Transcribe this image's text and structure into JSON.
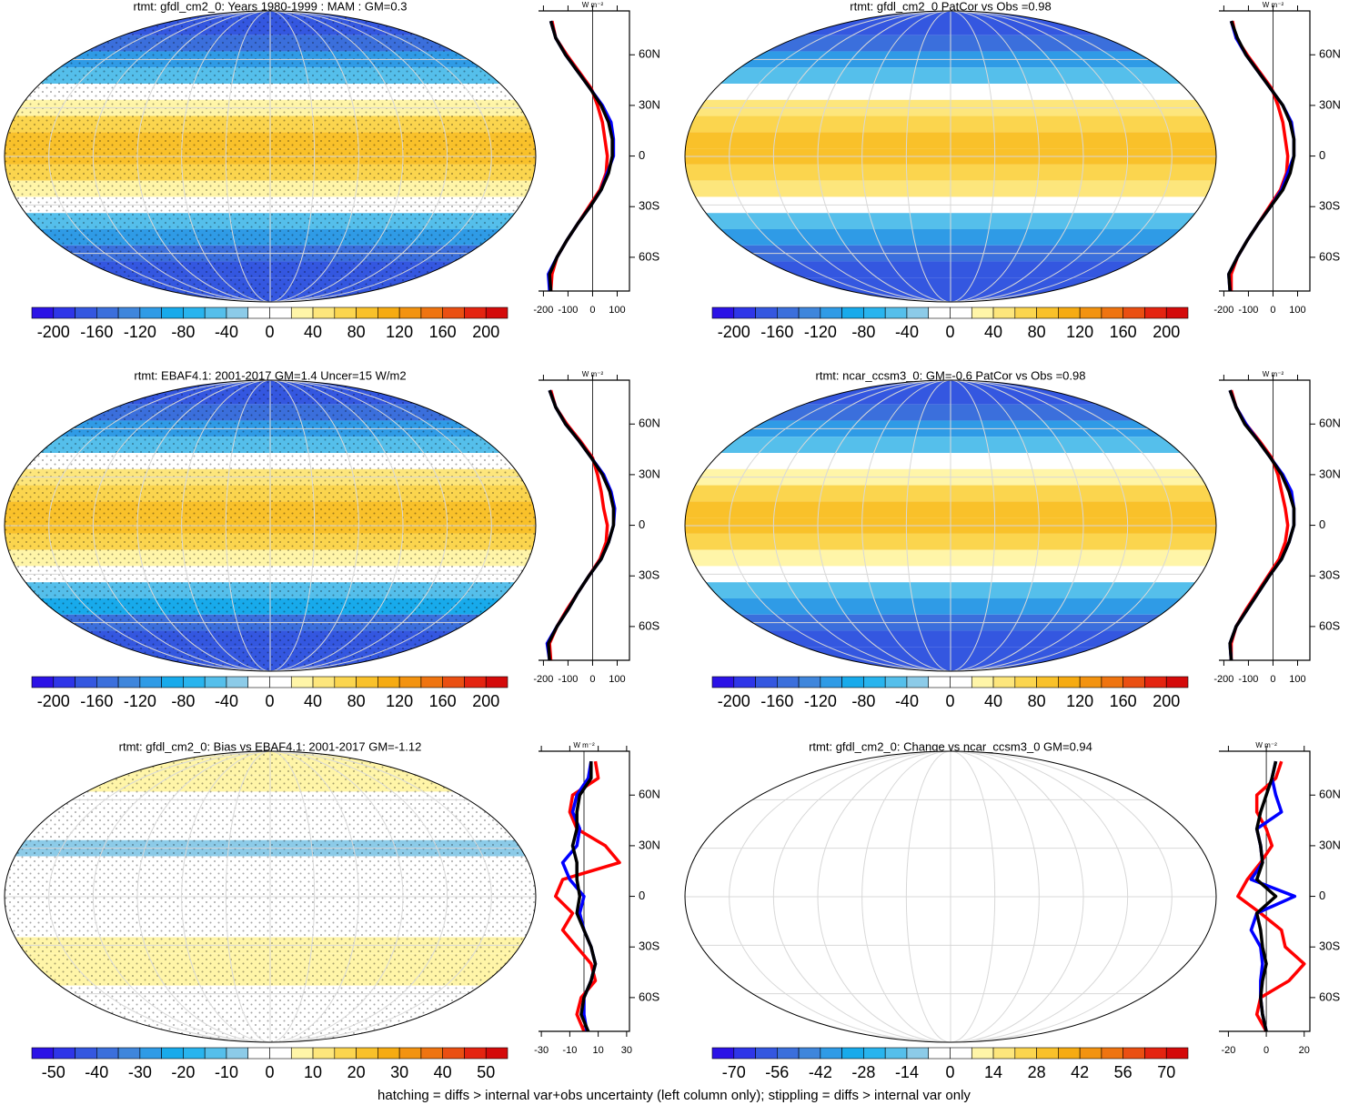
{
  "chart_data": [
    {
      "type": "map",
      "title": "rtmt: gfdl_cm2_0: Years 1980-1999 : MAM : GM=0.3",
      "cbar_ticks": [
        -200,
        -160,
        -120,
        -80,
        -40,
        0,
        40,
        80,
        120,
        160,
        200
      ],
      "x_label": "W m⁻²",
      "xlim": [
        -220,
        150
      ],
      "xticks": [
        -200,
        -100,
        0,
        100
      ],
      "ylim": [
        -80,
        86
      ],
      "yticks": [
        {
          "value": 60,
          "label": "60N"
        },
        {
          "value": 30,
          "label": "30N"
        },
        0,
        {
          "value": -30,
          "label": "30S"
        },
        {
          "value": -60,
          "label": "60S"
        }
      ],
      "lat": [
        80,
        70,
        60,
        50,
        40,
        30,
        20,
        10,
        0,
        -10,
        -20,
        -30,
        -40,
        -50,
        -60,
        -70,
        -80
      ],
      "series": [
        {
          "color": "#ff0000",
          "values": [
            -165,
            -150,
            -105,
            -55,
            -5,
            20,
            40,
            50,
            60,
            55,
            30,
            -15,
            -60,
            -105,
            -145,
            -165,
            -170
          ]
        },
        {
          "color": "#0000ff",
          "values": [
            -170,
            -150,
            -110,
            -60,
            -10,
            40,
            75,
            85,
            85,
            60,
            35,
            -10,
            -60,
            -105,
            -145,
            -180,
            -175
          ]
        },
        {
          "color": "#000000",
          "values": [
            -170,
            -150,
            -110,
            -60,
            -10,
            35,
            65,
            80,
            80,
            65,
            35,
            -10,
            -60,
            -105,
            -145,
            -175,
            -170
          ]
        }
      ]
    },
    {
      "type": "map",
      "title": "rtmt: gfdl_cm2_0 PatCor vs Obs =0.98",
      "cbar_ticks": [
        -200,
        -160,
        -120,
        -80,
        -40,
        0,
        40,
        80,
        120,
        160,
        200
      ],
      "x_label": "W m⁻²",
      "xlim": [
        -220,
        150
      ],
      "xticks": [
        -200,
        -100,
        0,
        100
      ],
      "ylim": [
        -80,
        86
      ],
      "yticks": [
        {
          "value": 60,
          "label": "60N"
        },
        {
          "value": 30,
          "label": "30N"
        },
        0,
        {
          "value": -30,
          "label": "30S"
        },
        {
          "value": -60,
          "label": "60S"
        }
      ],
      "lat": [
        80,
        70,
        60,
        50,
        40,
        30,
        20,
        10,
        0,
        -10,
        -20,
        -30,
        -40,
        -50,
        -60,
        -70,
        -80
      ],
      "series": [
        {
          "color": "#ff0000",
          "values": [
            -165,
            -150,
            -105,
            -55,
            -5,
            20,
            40,
            50,
            60,
            55,
            30,
            -15,
            -60,
            -105,
            -145,
            -170,
            -170
          ]
        },
        {
          "color": "#0000ff",
          "values": [
            -170,
            -150,
            -110,
            -60,
            -10,
            40,
            75,
            85,
            85,
            60,
            35,
            -10,
            -60,
            -105,
            -145,
            -180,
            -175
          ]
        },
        {
          "color": "#000000",
          "values": [
            -170,
            -145,
            -110,
            -60,
            -10,
            40,
            70,
            85,
            85,
            70,
            40,
            -10,
            -60,
            -105,
            -145,
            -180,
            -175
          ]
        }
      ]
    },
    {
      "type": "map",
      "title": "rtmt: EBAF4.1: 2001-2017 GM=1.4 Uncer=15 W/m2",
      "cbar_ticks": [
        -200,
        -160,
        -120,
        -80,
        -40,
        0,
        40,
        80,
        120,
        160,
        200
      ],
      "x_label": "W m⁻²",
      "xlim": [
        -220,
        150
      ],
      "xticks": [
        -200,
        -100,
        0,
        100
      ],
      "ylim": [
        -80,
        86
      ],
      "yticks": [
        {
          "value": 60,
          "label": "60N"
        },
        {
          "value": 30,
          "label": "30N"
        },
        0,
        {
          "value": -30,
          "label": "30S"
        },
        {
          "value": -60,
          "label": "60S"
        }
      ],
      "lat": [
        80,
        70,
        60,
        50,
        40,
        30,
        20,
        10,
        0,
        -10,
        -20,
        -30,
        -40,
        -50,
        -60,
        -70,
        -80
      ],
      "series": [
        {
          "color": "#ff0000",
          "values": [
            -170,
            -150,
            -105,
            -50,
            0,
            20,
            35,
            45,
            60,
            55,
            30,
            -15,
            -60,
            -105,
            -145,
            -175,
            -170
          ]
        },
        {
          "color": "#0000ff",
          "values": [
            -175,
            -150,
            -110,
            -55,
            -5,
            45,
            75,
            90,
            85,
            65,
            35,
            -15,
            -60,
            -100,
            -145,
            -185,
            -175
          ]
        },
        {
          "color": "#000000",
          "values": [
            -175,
            -150,
            -110,
            -55,
            -5,
            40,
            70,
            85,
            85,
            65,
            35,
            -15,
            -60,
            -100,
            -145,
            -180,
            -175
          ]
        }
      ]
    },
    {
      "type": "map",
      "title": "rtmt: ncar_ccsm3_0: GM=-0.6 PatCor vs Obs =0.98",
      "cbar_ticks": [
        -200,
        -160,
        -120,
        -80,
        -40,
        0,
        40,
        80,
        120,
        160,
        200
      ],
      "x_label": "W m⁻²",
      "xlim": [
        -220,
        150
      ],
      "xticks": [
        -200,
        -100,
        0,
        100
      ],
      "ylim": [
        -80,
        86
      ],
      "yticks": [
        {
          "value": 60,
          "label": "60N"
        },
        {
          "value": 30,
          "label": "30N"
        },
        0,
        {
          "value": -30,
          "label": "30S"
        },
        {
          "value": -60,
          "label": "60S"
        }
      ],
      "lat": [
        80,
        70,
        60,
        50,
        40,
        30,
        20,
        10,
        0,
        -10,
        -20,
        -30,
        -40,
        -50,
        -60,
        -70,
        -80
      ],
      "series": [
        {
          "color": "#ff0000",
          "values": [
            -170,
            -150,
            -110,
            -55,
            -5,
            20,
            35,
            50,
            60,
            50,
            25,
            -20,
            -65,
            -110,
            -150,
            -170,
            -170
          ]
        },
        {
          "color": "#0000ff",
          "values": [
            -175,
            -150,
            -110,
            -60,
            -10,
            40,
            75,
            85,
            85,
            65,
            35,
            -15,
            -60,
            -105,
            -150,
            -175,
            -170
          ]
        },
        {
          "color": "#000000",
          "values": [
            -175,
            -150,
            -115,
            -60,
            -10,
            35,
            65,
            85,
            85,
            65,
            35,
            -15,
            -60,
            -105,
            -150,
            -175,
            -170
          ]
        }
      ]
    },
    {
      "type": "map",
      "title": "rtmt: gfdl_cm2_0: Bias vs EBAF4.1: 2001-2017 GM=-1.12",
      "cbar_ticks": [
        -50,
        -40,
        -30,
        -20,
        -10,
        0,
        10,
        20,
        30,
        40,
        50
      ],
      "x_label": "W m⁻²",
      "xlim": [
        -32,
        32
      ],
      "xticks": [
        -30,
        -10,
        10,
        30
      ],
      "ylim": [
        -80,
        86
      ],
      "yticks": [
        {
          "value": 60,
          "label": "60N"
        },
        {
          "value": 30,
          "label": "30N"
        },
        0,
        {
          "value": -30,
          "label": "30S"
        },
        {
          "value": -60,
          "label": "60S"
        }
      ],
      "lat": [
        80,
        70,
        60,
        50,
        40,
        30,
        20,
        10,
        0,
        -10,
        -20,
        -30,
        -40,
        -50,
        -60,
        -70,
        -80
      ],
      "series": [
        {
          "color": "#ff0000",
          "values": [
            8,
            10,
            -8,
            -10,
            -5,
            15,
            25,
            -15,
            -20,
            -8,
            -15,
            -5,
            5,
            8,
            -2,
            -5,
            0
          ]
        },
        {
          "color": "#0000ff",
          "values": [
            5,
            3,
            -5,
            -8,
            -3,
            -5,
            -15,
            -10,
            0,
            -3,
            0,
            5,
            8,
            5,
            0,
            0,
            2
          ]
        },
        {
          "color": "#000000",
          "values": [
            5,
            5,
            -3,
            -5,
            -5,
            -8,
            -5,
            -5,
            -3,
            -5,
            0,
            5,
            8,
            5,
            0,
            -2,
            3
          ]
        }
      ]
    },
    {
      "type": "map",
      "title": "rtmt: gfdl_cm2_0: Change vs ncar_ccsm3_0 GM=0.94",
      "cbar_ticks": [
        -70,
        -56,
        -42,
        -28,
        -14,
        0,
        14,
        28,
        42,
        56,
        70
      ],
      "x_label": "W m⁻²",
      "xlim": [
        -25,
        23
      ],
      "xticks": [
        -20,
        0,
        20
      ],
      "ylim": [
        -80,
        86
      ],
      "yticks": [
        {
          "value": 60,
          "label": "60N"
        },
        {
          "value": 30,
          "label": "30N"
        },
        0,
        {
          "value": -30,
          "label": "30S"
        },
        {
          "value": -60,
          "label": "60S"
        }
      ],
      "lat": [
        80,
        70,
        60,
        50,
        40,
        30,
        20,
        10,
        0,
        -10,
        -20,
        -30,
        -40,
        -50,
        -60,
        -70,
        -80
      ],
      "series": [
        {
          "color": "#ff0000",
          "values": [
            8,
            5,
            -5,
            -5,
            0,
            3,
            -3,
            -10,
            -15,
            -3,
            8,
            10,
            20,
            12,
            -3,
            -5,
            0
          ]
        },
        {
          "color": "#0000ff",
          "values": [
            5,
            3,
            5,
            8,
            -5,
            -3,
            -2,
            -8,
            15,
            -5,
            -8,
            -3,
            -2,
            -3,
            -3,
            -2,
            0
          ]
        },
        {
          "color": "#000000",
          "values": [
            5,
            3,
            0,
            -3,
            -5,
            -3,
            -2,
            -5,
            5,
            -5,
            -3,
            -2,
            0,
            -2,
            -3,
            -2,
            0
          ]
        }
      ]
    }
  ],
  "palette": [
    "#2b12e6",
    "#2e35e8",
    "#3457e0",
    "#3b6fdc",
    "#3f86dc",
    "#2f9be6",
    "#18aaeb",
    "#28b4ee",
    "#55bfeb",
    "#8ccbe8",
    "#ffffff",
    "#ffffff",
    "#fff5a8",
    "#fde67c",
    "#fbd54e",
    "#f9c12a",
    "#f6ab12",
    "#f39310",
    "#ef7410",
    "#ea4f12",
    "#e42410",
    "#d40a0a"
  ],
  "footer": "hatching = diffs > internal var+obs uncertainty (left column only); stippling = diffs > internal var only"
}
